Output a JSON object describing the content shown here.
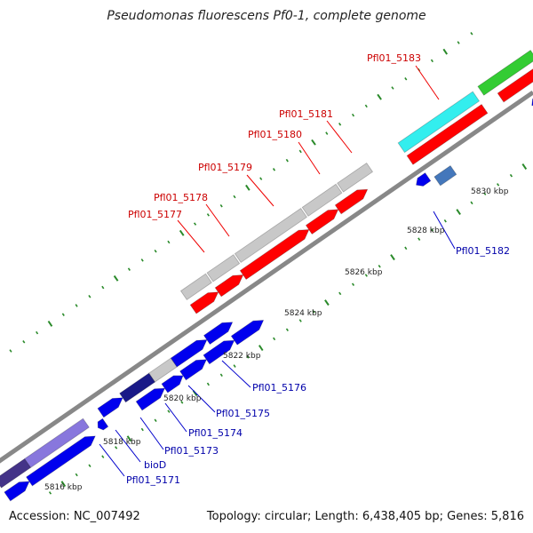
{
  "title": "Pseudomonas fluorescens Pf0-1, complete genome",
  "footer": {
    "accession": "Accession: NC_007492",
    "summary": "Topology: circular; Length: 6,438,405 bp; Genes: 5,816"
  },
  "colors": {
    "backbone": "#888888",
    "tick": "#2a8a2a",
    "label_top": "#cc0000",
    "label_bottom": "#0000aa",
    "callout_top": "#ee0000",
    "callout_bottom": "#0000cc"
  },
  "scale_labels": [
    "5816 kbp",
    "5818 kbp",
    "5820 kbp",
    "5822 kbp",
    "5824 kbp",
    "5826 kbp",
    "5828 kbp",
    "5830 kbp"
  ],
  "gene_labels_top": [
    "Pfl01_5177",
    "Pfl01_5178",
    "Pfl01_5179",
    "Pfl01_5180",
    "Pfl01_5181",
    "Pfl01_5183"
  ],
  "gene_labels_bottom": [
    "Pfl01_5171",
    "bioD",
    "Pfl01_5173",
    "Pfl01_5174",
    "Pfl01_5175",
    "Pfl01_5176",
    "Pfl01_5182"
  ]
}
